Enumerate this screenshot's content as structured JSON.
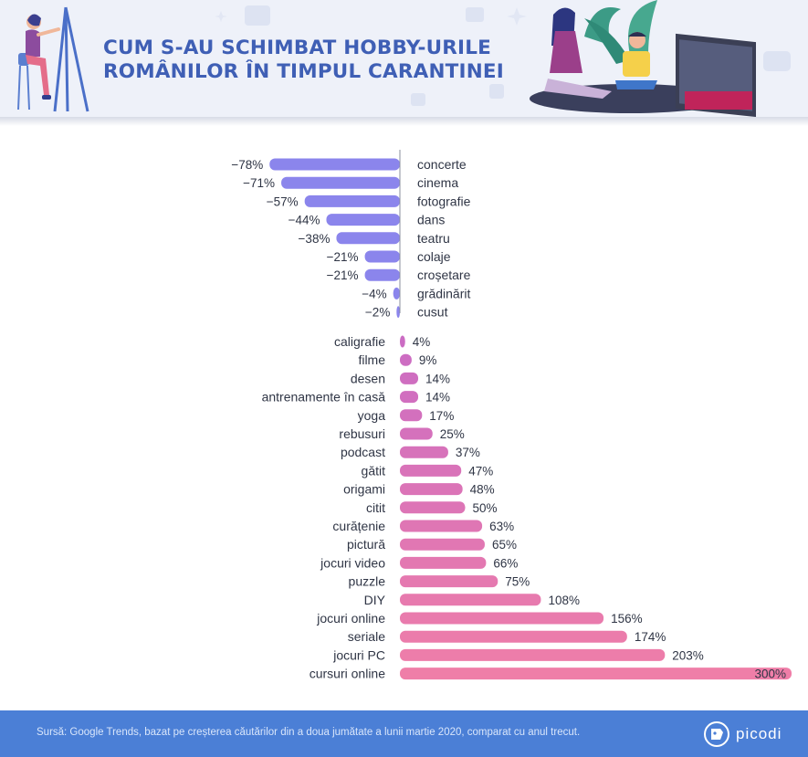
{
  "header": {
    "title_line1": "CUM S-AU SCHIMBAT HOBBY-URILE",
    "title_line2": "ROMÂNILOR ÎN TIMPUL CARANTINEI"
  },
  "chart_data": {
    "type": "bar",
    "orientation": "horizontal",
    "unit": "%",
    "negative": {
      "categories": [
        "concerte",
        "cinema",
        "fotografie",
        "dans",
        "teatru",
        "colaje",
        "croșetare",
        "grădinărit",
        "cusut"
      ],
      "values": [
        -78,
        -71,
        -57,
        -44,
        -38,
        -21,
        -21,
        -4,
        -2
      ],
      "labels": [
        "−78%",
        "−71%",
        "−57%",
        "−44%",
        "−38%",
        "−21%",
        "−21%",
        "−4%",
        "−2%"
      ],
      "color": "#8b85ec"
    },
    "positive": {
      "categories": [
        "caligrafie",
        "filme",
        "desen",
        "antrenamente în casă",
        "yoga",
        "rebusuri",
        "podcast",
        "gătit",
        "origami",
        "citit",
        "curățenie",
        "pictură",
        "jocuri video",
        "puzzle",
        "DIY",
        "jocuri online",
        "seriale",
        "jocuri PC",
        "cursuri online"
      ],
      "values": [
        4,
        9,
        14,
        14,
        17,
        25,
        37,
        47,
        48,
        50,
        63,
        65,
        66,
        75,
        108,
        156,
        174,
        203,
        300
      ],
      "labels": [
        "4%",
        "9%",
        "14%",
        "14%",
        "17%",
        "25%",
        "37%",
        "47%",
        "48%",
        "50%",
        "63%",
        "65%",
        "66%",
        "75%",
        "108%",
        "156%",
        "174%",
        "203%",
        "300%"
      ],
      "color_start": "#cb6cc3",
      "color_end": "#ef7ea8"
    }
  },
  "footer": {
    "source": "Sursă: Google Trends, bazat pe creșterea căutărilor din a doua jumătate a lunii martie 2020, comparat cu anul trecut.",
    "brand": "picodi"
  }
}
